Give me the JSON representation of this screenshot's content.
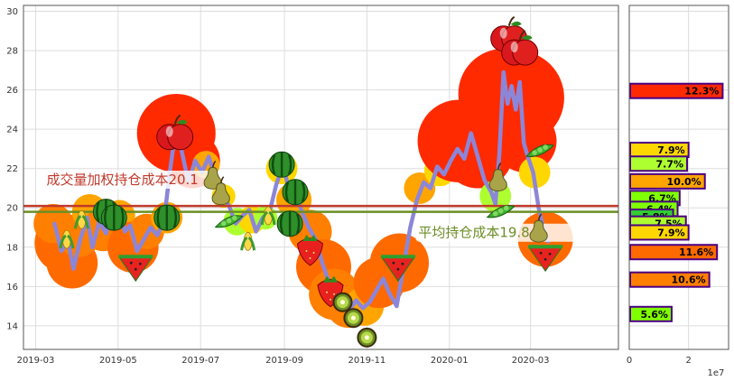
{
  "chart_data": [
    {
      "type": "line",
      "title": "",
      "xlabel": "",
      "ylabel": "",
      "x_range": [
        "2019-02-20",
        "2020-05-05"
      ],
      "ylim": [
        12.8,
        30.3
      ],
      "x_ticks": [
        {
          "date": "2019-03-01",
          "label": "2019-03"
        },
        {
          "date": "2019-05-01",
          "label": "2019-05"
        },
        {
          "date": "2019-07-01",
          "label": "2019-07"
        },
        {
          "date": "2019-09-01",
          "label": "2019-09"
        },
        {
          "date": "2019-11-01",
          "label": "2019-11"
        },
        {
          "date": "2020-01-01",
          "label": "2020-01"
        },
        {
          "date": "2020-03-01",
          "label": "2020-03"
        }
      ],
      "y_ticks": [
        {
          "value": 14,
          "label": "14"
        },
        {
          "value": 16,
          "label": "16"
        },
        {
          "value": 18,
          "label": "18"
        },
        {
          "value": 20,
          "label": "20"
        },
        {
          "value": 22,
          "label": "22"
        },
        {
          "value": 24,
          "label": "24"
        },
        {
          "value": 26,
          "label": "26"
        },
        {
          "value": 28,
          "label": "28"
        },
        {
          "value": 30,
          "label": "30"
        }
      ],
      "grid": true,
      "colors": {
        "line": "#8c86d9",
        "vwap_line": "#c0392b",
        "avg_line": "#6b8e23",
        "grid": "#dddddd"
      },
      "series": [
        {
          "points": [
            {
              "x": "2019-03-15",
              "y": 19.2
            },
            {
              "x": "2019-03-20",
              "y": 17.8
            },
            {
              "x": "2019-03-25",
              "y": 18.3
            },
            {
              "x": "2019-03-29",
              "y": 16.9
            },
            {
              "x": "2019-04-03",
              "y": 18.4
            },
            {
              "x": "2019-04-08",
              "y": 19.5
            },
            {
              "x": "2019-04-12",
              "y": 18.0
            },
            {
              "x": "2019-04-17",
              "y": 19.3
            },
            {
              "x": "2019-04-22",
              "y": 18.7
            },
            {
              "x": "2019-04-26",
              "y": 19.8
            },
            {
              "x": "2019-05-01",
              "y": 20.0
            },
            {
              "x": "2019-05-06",
              "y": 18.8
            },
            {
              "x": "2019-05-10",
              "y": 19.1
            },
            {
              "x": "2019-05-15",
              "y": 17.8
            },
            {
              "x": "2019-05-20",
              "y": 18.4
            },
            {
              "x": "2019-05-25",
              "y": 19.0
            },
            {
              "x": "2019-05-30",
              "y": 18.6
            },
            {
              "x": "2019-06-04",
              "y": 19.4
            },
            {
              "x": "2019-06-08",
              "y": 21.7
            },
            {
              "x": "2019-06-12",
              "y": 23.7
            },
            {
              "x": "2019-06-17",
              "y": 22.9
            },
            {
              "x": "2019-06-22",
              "y": 21.3
            },
            {
              "x": "2019-06-27",
              "y": 22.4
            },
            {
              "x": "2019-07-02",
              "y": 21.8
            },
            {
              "x": "2019-07-07",
              "y": 22.6
            },
            {
              "x": "2019-07-12",
              "y": 21.5
            },
            {
              "x": "2019-07-17",
              "y": 20.7
            },
            {
              "x": "2019-07-22",
              "y": 20.1
            },
            {
              "x": "2019-07-27",
              "y": 19.2
            },
            {
              "x": "2019-08-01",
              "y": 19.6
            },
            {
              "x": "2019-08-06",
              "y": 19.9
            },
            {
              "x": "2019-08-11",
              "y": 18.8
            },
            {
              "x": "2019-08-16",
              "y": 19.5
            },
            {
              "x": "2019-08-21",
              "y": 19.8
            },
            {
              "x": "2019-08-26",
              "y": 21.2
            },
            {
              "x": "2019-08-31",
              "y": 22.2
            },
            {
              "x": "2019-09-04",
              "y": 21.0
            },
            {
              "x": "2019-09-09",
              "y": 20.8
            },
            {
              "x": "2019-09-14",
              "y": 19.8
            },
            {
              "x": "2019-09-19",
              "y": 19.0
            },
            {
              "x": "2019-09-24",
              "y": 18.4
            },
            {
              "x": "2019-09-29",
              "y": 17.2
            },
            {
              "x": "2019-10-04",
              "y": 16.2
            },
            {
              "x": "2019-10-09",
              "y": 15.5
            },
            {
              "x": "2019-10-14",
              "y": 15.1
            },
            {
              "x": "2019-10-19",
              "y": 14.8
            },
            {
              "x": "2019-10-24",
              "y": 15.3
            },
            {
              "x": "2019-10-29",
              "y": 14.9
            },
            {
              "x": "2019-11-03",
              "y": 15.2
            },
            {
              "x": "2019-11-08",
              "y": 15.8
            },
            {
              "x": "2019-11-13",
              "y": 16.4
            },
            {
              "x": "2019-11-18",
              "y": 15.6
            },
            {
              "x": "2019-11-23",
              "y": 15.0
            },
            {
              "x": "2019-11-28",
              "y": 17.0
            },
            {
              "x": "2019-12-03",
              "y": 19.0
            },
            {
              "x": "2019-12-08",
              "y": 20.4
            },
            {
              "x": "2019-12-13",
              "y": 21.3
            },
            {
              "x": "2019-12-18",
              "y": 21.0
            },
            {
              "x": "2019-12-23",
              "y": 22.1
            },
            {
              "x": "2019-12-28",
              "y": 21.7
            },
            {
              "x": "2020-01-02",
              "y": 22.4
            },
            {
              "x": "2020-01-07",
              "y": 23.0
            },
            {
              "x": "2020-01-12",
              "y": 22.5
            },
            {
              "x": "2020-01-17",
              "y": 23.8
            },
            {
              "x": "2020-01-22",
              "y": 22.6
            },
            {
              "x": "2020-01-27",
              "y": 21.4
            },
            {
              "x": "2020-02-01",
              "y": 20.8
            },
            {
              "x": "2020-02-04",
              "y": 20.2
            },
            {
              "x": "2020-02-07",
              "y": 22.8
            },
            {
              "x": "2020-02-10",
              "y": 26.9
            },
            {
              "x": "2020-02-13",
              "y": 25.3
            },
            {
              "x": "2020-02-16",
              "y": 26.2
            },
            {
              "x": "2020-02-19",
              "y": 25.0
            },
            {
              "x": "2020-02-22",
              "y": 26.4
            },
            {
              "x": "2020-02-25",
              "y": 23.3
            },
            {
              "x": "2020-02-28",
              "y": 22.6
            },
            {
              "x": "2020-03-03",
              "y": 21.8
            },
            {
              "x": "2020-03-07",
              "y": 20.0
            },
            {
              "x": "2020-03-10",
              "y": 19.1
            },
            {
              "x": "2020-03-14",
              "y": 18.3
            }
          ]
        }
      ],
      "bubbles": [
        {
          "x": "2019-03-22",
          "y": 18.2,
          "r": 1.5,
          "color": "#ff6a00"
        },
        {
          "x": "2019-03-28",
          "y": 17.2,
          "r": 1.3,
          "color": "#ff6a00"
        },
        {
          "x": "2019-03-14",
          "y": 19.2,
          "r": 1.0,
          "color": "#ff7f00"
        },
        {
          "x": "2019-04-02",
          "y": 18.6,
          "r": 1.1,
          "color": "#ff7f00"
        },
        {
          "x": "2019-04-10",
          "y": 19.8,
          "r": 0.9,
          "color": "#ffa500"
        },
        {
          "x": "2019-04-20",
          "y": 18.9,
          "r": 1.1,
          "color": "#ff7f00"
        },
        {
          "x": "2019-05-02",
          "y": 19.6,
          "r": 0.8,
          "color": "#ffa500"
        },
        {
          "x": "2019-05-12",
          "y": 18.0,
          "r": 1.3,
          "color": "#ff6a00"
        },
        {
          "x": "2019-05-22",
          "y": 18.8,
          "r": 0.9,
          "color": "#ff7f00"
        },
        {
          "x": "2019-06-06",
          "y": 19.5,
          "r": 0.8,
          "color": "#ffa500"
        },
        {
          "x": "2019-06-13",
          "y": 23.8,
          "r": 2.0,
          "color": "#ff2a00"
        },
        {
          "x": "2019-06-25",
          "y": 22.4,
          "r": 1.4,
          "color": "#ff2a00"
        },
        {
          "x": "2019-07-05",
          "y": 22.2,
          "r": 0.7,
          "color": "#ffa500"
        },
        {
          "x": "2019-07-18",
          "y": 20.6,
          "r": 0.6,
          "color": "#ffd700"
        },
        {
          "x": "2019-07-28",
          "y": 19.3,
          "r": 0.7,
          "color": "#adff2f"
        },
        {
          "x": "2019-08-08",
          "y": 19.4,
          "r": 0.7,
          "color": "#ffd700"
        },
        {
          "x": "2019-08-18",
          "y": 19.5,
          "r": 0.6,
          "color": "#adff2f"
        },
        {
          "x": "2019-08-30",
          "y": 22.0,
          "r": 0.8,
          "color": "#ffd700"
        },
        {
          "x": "2019-09-08",
          "y": 20.4,
          "r": 0.9,
          "color": "#ffa500"
        },
        {
          "x": "2019-09-20",
          "y": 18.8,
          "r": 1.1,
          "color": "#ff7f00"
        },
        {
          "x": "2019-09-30",
          "y": 17.0,
          "r": 1.4,
          "color": "#ff6a00"
        },
        {
          "x": "2019-10-08",
          "y": 15.6,
          "r": 1.3,
          "color": "#ff7f00"
        },
        {
          "x": "2019-10-18",
          "y": 15.0,
          "r": 1.1,
          "color": "#ff7f00"
        },
        {
          "x": "2019-10-30",
          "y": 15.0,
          "r": 1.0,
          "color": "#ffa500"
        },
        {
          "x": "2019-11-10",
          "y": 16.2,
          "r": 1.3,
          "color": "#ff6a00"
        },
        {
          "x": "2019-11-25",
          "y": 17.2,
          "r": 1.5,
          "color": "#ff6a00"
        },
        {
          "x": "2019-12-10",
          "y": 21.0,
          "r": 0.8,
          "color": "#ffa500"
        },
        {
          "x": "2019-12-25",
          "y": 21.9,
          "r": 0.8,
          "color": "#ffd700"
        },
        {
          "x": "2020-01-08",
          "y": 23.4,
          "r": 2.1,
          "color": "#ff2a00"
        },
        {
          "x": "2020-01-22",
          "y": 22.8,
          "r": 1.8,
          "color": "#ff2a00"
        },
        {
          "x": "2020-02-04",
          "y": 20.6,
          "r": 0.8,
          "color": "#adff2f"
        },
        {
          "x": "2020-02-10",
          "y": 25.8,
          "r": 2.3,
          "color": "#ff2a00"
        },
        {
          "x": "2020-02-20",
          "y": 25.6,
          "r": 2.4,
          "color": "#ff2a00"
        },
        {
          "x": "2020-02-26",
          "y": 23.4,
          "r": 1.6,
          "color": "#ff2a00"
        },
        {
          "x": "2020-03-04",
          "y": 21.8,
          "r": 0.8,
          "color": "#ffd700"
        },
        {
          "x": "2020-03-12",
          "y": 18.4,
          "r": 1.4,
          "color": "#ff6a00"
        }
      ],
      "fruit": [
        {
          "kind": "apple",
          "x": "2019-06-12",
          "y": 23.7
        },
        {
          "kind": "apple",
          "x": "2020-02-14",
          "y": 28.7
        },
        {
          "kind": "apple",
          "x": "2020-02-22",
          "y": 28.0
        },
        {
          "kind": "watermelon",
          "x": "2019-04-22",
          "y": 19.8
        },
        {
          "kind": "watermelon",
          "x": "2019-04-28",
          "y": 19.5
        },
        {
          "kind": "watermelon",
          "x": "2019-06-06",
          "y": 19.5
        },
        {
          "kind": "watermelon",
          "x": "2019-08-30",
          "y": 22.2
        },
        {
          "kind": "watermelon",
          "x": "2019-09-09",
          "y": 20.8
        },
        {
          "kind": "watermelon",
          "x": "2019-09-05",
          "y": 19.2
        },
        {
          "kind": "melon-slice",
          "x": "2019-05-14",
          "y": 17.2
        },
        {
          "kind": "melon-slice",
          "x": "2019-11-24",
          "y": 17.2
        },
        {
          "kind": "melon-slice",
          "x": "2020-03-12",
          "y": 17.7
        },
        {
          "kind": "strawberry",
          "x": "2019-09-20",
          "y": 17.9
        },
        {
          "kind": "strawberry",
          "x": "2019-10-05",
          "y": 15.8
        },
        {
          "kind": "kiwi",
          "x": "2019-10-14",
          "y": 15.2
        },
        {
          "kind": "kiwi",
          "x": "2019-10-22",
          "y": 14.4
        },
        {
          "kind": "kiwi",
          "x": "2019-11-01",
          "y": 13.4
        },
        {
          "kind": "corn",
          "x": "2019-03-24",
          "y": 18.4
        },
        {
          "kind": "corn",
          "x": "2019-04-04",
          "y": 19.4
        },
        {
          "kind": "corn",
          "x": "2019-08-05",
          "y": 18.3
        },
        {
          "kind": "corn",
          "x": "2019-08-20",
          "y": 19.6
        },
        {
          "kind": "pea",
          "x": "2019-07-22",
          "y": 19.3
        },
        {
          "kind": "pea",
          "x": "2020-02-08",
          "y": 19.8
        },
        {
          "kind": "pea",
          "x": "2020-03-08",
          "y": 22.9
        },
        {
          "kind": "pear",
          "x": "2019-07-10",
          "y": 21.6
        },
        {
          "kind": "pear",
          "x": "2019-07-16",
          "y": 20.8
        },
        {
          "kind": "pear",
          "x": "2020-02-06",
          "y": 21.5
        },
        {
          "kind": "pear",
          "x": "2020-03-07",
          "y": 18.9
        }
      ],
      "reference_lines": [
        {
          "y": 20.1,
          "color": "#c0392b",
          "label": "成交量加权持仓成本20.1",
          "label_x": "2019-03-09",
          "label_y": 21.3
        },
        {
          "y": 19.8,
          "color": "#6b8e23",
          "label": "平均持仓成本19.8",
          "label_x": "2019-12-09",
          "label_y": 18.6
        }
      ]
    },
    {
      "type": "bar",
      "orientation": "horizontal",
      "title": "",
      "xlabel": "",
      "ylabel": "",
      "x_ticks": [
        {
          "value": 0,
          "label": "0"
        },
        {
          "value": 2,
          "label": "2"
        }
      ],
      "xlim": [
        0,
        3.35
      ],
      "x_scale_label": "1e7",
      "ylim": [
        12.8,
        30.3
      ],
      "bars": [
        {
          "price": 25.95,
          "value": 3.15,
          "label": "12.3%",
          "color": "#ff2a00"
        },
        {
          "price": 22.95,
          "value": 2.0,
          "label": "7.9%",
          "color": "#ffd700"
        },
        {
          "price": 22.25,
          "value": 1.95,
          "label": "7.7%",
          "color": "#adff2f"
        },
        {
          "price": 21.35,
          "value": 2.55,
          "label": "10.0%",
          "color": "#ffa500"
        },
        {
          "price": 20.5,
          "value": 1.7,
          "label": "6.7%",
          "color": "#7fff00"
        },
        {
          "price": 19.95,
          "value": 1.63,
          "label": "6.4%",
          "color": "#7fff00"
        },
        {
          "price": 19.55,
          "value": 1.48,
          "label": "5.8%",
          "color": "#32cd32"
        },
        {
          "price": 19.2,
          "value": 1.91,
          "label": "7.5%",
          "color": "#adff2f"
        },
        {
          "price": 18.75,
          "value": 2.0,
          "label": "7.9%",
          "color": "#ffd700"
        },
        {
          "price": 17.75,
          "value": 2.96,
          "label": "11.6%",
          "color": "#ff6a00"
        },
        {
          "price": 16.35,
          "value": 2.7,
          "label": "10.6%",
          "color": "#ff7f00"
        },
        {
          "price": 14.6,
          "value": 1.43,
          "label": "5.6%",
          "color": "#7fff00"
        }
      ]
    }
  ]
}
